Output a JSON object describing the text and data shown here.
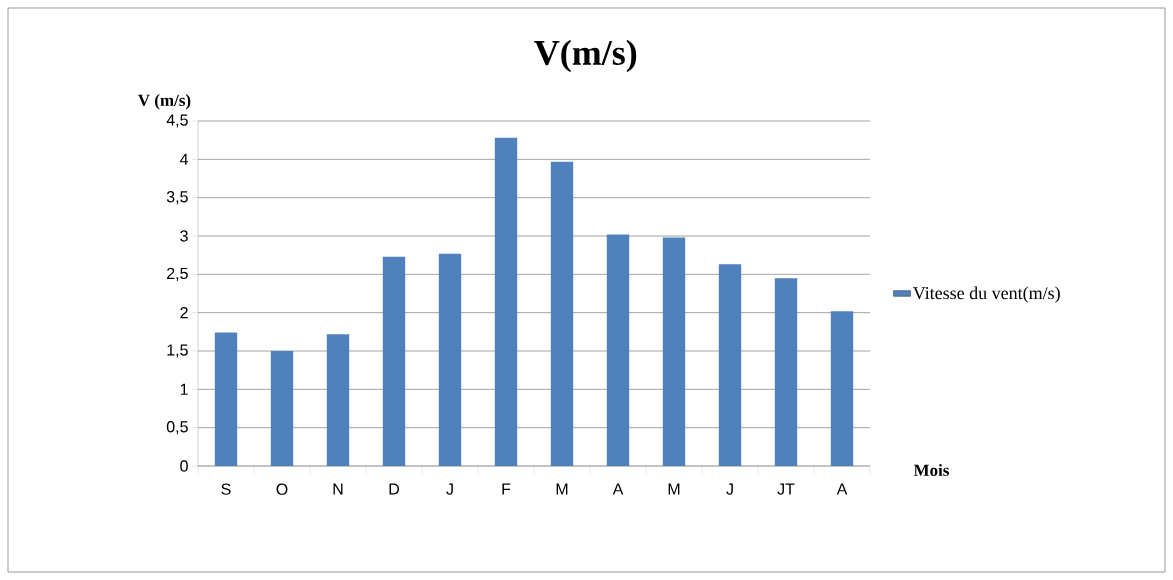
{
  "chart_data": {
    "type": "bar",
    "title": "V(m/s)",
    "xlabel": "Mois",
    "ylabel": "V (m/s)",
    "categories": [
      "S",
      "O",
      "N",
      "D",
      "J",
      "F",
      "M",
      "A",
      "M",
      "J",
      "JT",
      "A"
    ],
    "series": [
      {
        "name": "Vitesse du vent(m/s)",
        "color": "#4f81bd",
        "values": [
          1.74,
          1.5,
          1.72,
          2.73,
          2.77,
          4.28,
          3.97,
          3.02,
          2.98,
          2.63,
          2.45,
          2.02
        ]
      }
    ],
    "ylim": [
      0,
      4.5
    ],
    "yticks": [
      0,
      {
        "value": 0.5,
        "label": "0,5"
      },
      1,
      {
        "value": 1.5,
        "label": "1,5"
      },
      2,
      {
        "value": 2.5,
        "label": "2,5"
      },
      3,
      {
        "value": 3.5,
        "label": "3,5"
      },
      4,
      {
        "value": 4.5,
        "label": "4,5"
      }
    ],
    "grid": "y",
    "legend": "right"
  }
}
